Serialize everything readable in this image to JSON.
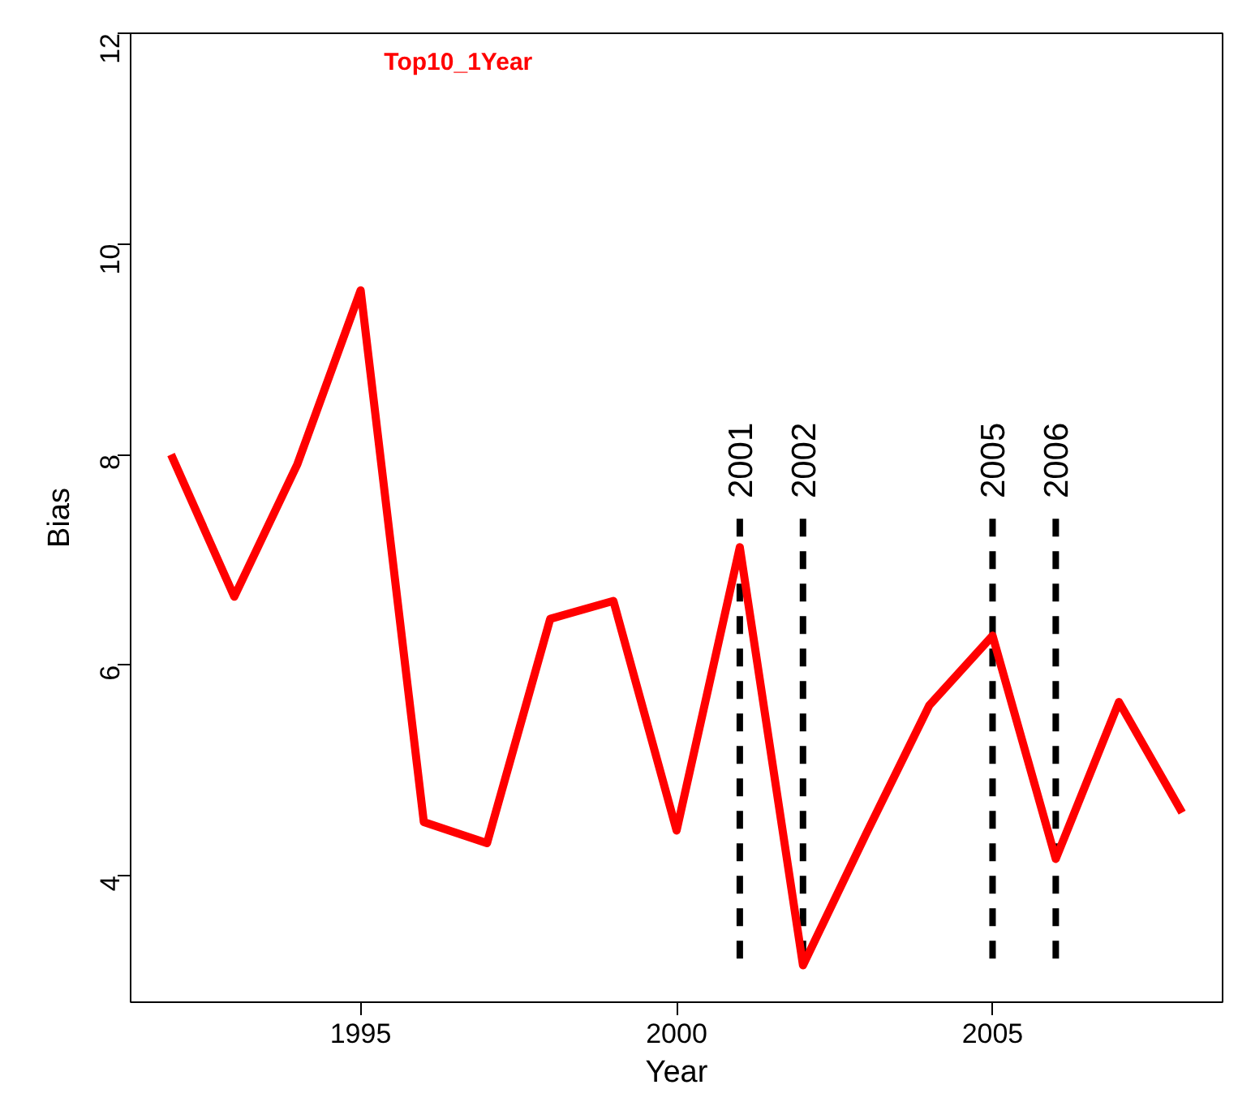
{
  "chart_data": {
    "type": "line",
    "title": "Top10_1Year",
    "xlabel": "Year",
    "ylabel": "Bias",
    "x": [
      1992,
      1993,
      1994,
      1995,
      1996,
      1997,
      1998,
      1999,
      2000,
      2001,
      2002,
      2003,
      2004,
      2005,
      2006,
      2007,
      2008
    ],
    "series": [
      {
        "color": "#ff0000",
        "values": [
          8.0,
          6.65,
          7.91,
          9.56,
          4.51,
          4.31,
          6.44,
          6.61,
          4.43,
          7.12,
          3.15,
          4.4,
          5.62,
          6.28,
          4.16,
          5.65,
          4.6
        ]
      }
    ],
    "xlim": [
      1991.36,
      2008.64
    ],
    "ylim": [
      2.8,
      12.0
    ],
    "xticks": [
      1995,
      2000,
      2005
    ],
    "yticks": [
      4,
      6,
      8,
      10,
      12
    ],
    "grid": false,
    "line_style": "solid",
    "ref_lines": [
      {
        "axis": "x",
        "value": 2001,
        "label": "2001",
        "line_style": "dashed",
        "color": "#000000"
      },
      {
        "axis": "x",
        "value": 2002,
        "label": "2002",
        "line_style": "dashed",
        "color": "#000000"
      },
      {
        "axis": "x",
        "value": 2005,
        "label": "2005",
        "line_style": "dashed",
        "color": "#000000"
      },
      {
        "axis": "x",
        "value": 2006,
        "label": "2006",
        "line_style": "dashed",
        "color": "#000000"
      }
    ]
  }
}
